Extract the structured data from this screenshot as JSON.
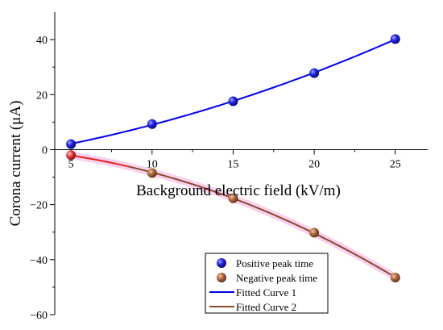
{
  "chart_data": {
    "type": "scatter",
    "title": "",
    "xlabel": "Background electric field (kV/m)",
    "ylabel": "Corona current (μA)",
    "xlim": [
      4,
      27
    ],
    "ylim": [
      -60,
      50
    ],
    "xticks": [
      5,
      10,
      15,
      20,
      25
    ],
    "yticks": [
      -60,
      -40,
      -20,
      0,
      20,
      40
    ],
    "xtick_labels": [
      "5",
      "10",
      "15",
      "20",
      "25"
    ],
    "ytick_labels": [
      "−60",
      "−40",
      "−20",
      "0",
      "20",
      "40"
    ],
    "grid": false,
    "legend_position": "bottom-right",
    "series": [
      {
        "name": "Positive peak time",
        "kind": "scatter",
        "color": "#1a1ad6",
        "x": [
          5,
          10,
          15,
          20,
          25
        ],
        "y": [
          2.0,
          9.3,
          17.6,
          27.8,
          40.2
        ]
      },
      {
        "name": "Negative peak time",
        "kind": "scatter",
        "color": "#a0603a",
        "x": [
          5,
          10,
          15,
          20,
          25
        ],
        "y": [
          -2.0,
          -8.5,
          -17.7,
          -30.2,
          -46.5
        ]
      },
      {
        "name": "Fitted Curve 1",
        "kind": "line",
        "color": "#0000ee",
        "x": [
          5,
          10,
          15,
          20,
          25
        ],
        "y": [
          2.0,
          9.3,
          17.6,
          27.8,
          40.2
        ]
      },
      {
        "name": "Fitted Curve 2",
        "kind": "line",
        "color": "#e8201c",
        "color2": "#8b4a2b",
        "x": [
          5,
          10,
          15,
          20,
          25
        ],
        "y": [
          -2.0,
          -8.5,
          -17.7,
          -30.2,
          -46.5
        ]
      }
    ]
  }
}
